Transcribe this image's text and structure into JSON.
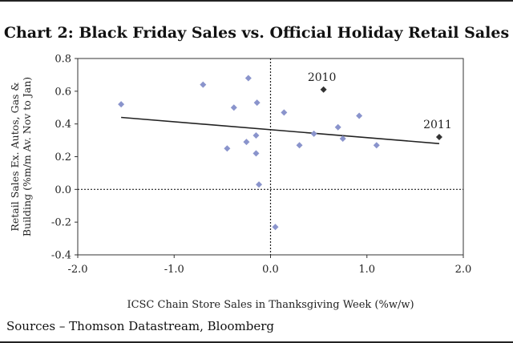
{
  "title": "Chart 2: Black Friday Sales vs. Official Holiday Retail Sales",
  "sources": "Sources – Thomson Datastream, Bloomberg",
  "chart_data": {
    "type": "scatter",
    "title": "Chart 2: Black Friday Sales vs. Official Holiday Retail Sales",
    "xlabel": "ICSC Chain Store Sales in Thanksgiving Week (%w/w)",
    "ylabel": "Retail Sales Ex. Autos, Gas & Building (%m/m Av. Nov to Jan)",
    "xlim": [
      -2.0,
      2.0
    ],
    "ylim": [
      -0.4,
      0.8
    ],
    "xticks": [
      -2.0,
      -1.0,
      0.0,
      1.0,
      2.0
    ],
    "xtick_labels": [
      "-2.0",
      "-1.0",
      "0.0",
      "1.0",
      "2.0"
    ],
    "yticks": [
      -0.4,
      -0.2,
      0.0,
      0.2,
      0.4,
      0.6,
      0.8
    ],
    "ytick_labels": [
      "-0.4",
      "-0.2",
      "0.0",
      "0.2",
      "0.4",
      "0.6",
      "0.8"
    ],
    "grid": false,
    "zero_lines": true,
    "colors": {
      "point": "#8a94cc",
      "highlight": "#333333",
      "trend": "#222222"
    },
    "points": [
      {
        "x": -1.55,
        "y": 0.52
      },
      {
        "x": -0.7,
        "y": 0.64
      },
      {
        "x": -0.45,
        "y": 0.25
      },
      {
        "x": -0.38,
        "y": 0.5
      },
      {
        "x": -0.25,
        "y": 0.29
      },
      {
        "x": -0.23,
        "y": 0.68
      },
      {
        "x": -0.15,
        "y": 0.33
      },
      {
        "x": -0.15,
        "y": 0.22
      },
      {
        "x": -0.14,
        "y": 0.53
      },
      {
        "x": -0.12,
        "y": 0.03
      },
      {
        "x": 0.05,
        "y": -0.23
      },
      {
        "x": 0.14,
        "y": 0.47
      },
      {
        "x": 0.3,
        "y": 0.27
      },
      {
        "x": 0.45,
        "y": 0.34
      },
      {
        "x": 0.7,
        "y": 0.38
      },
      {
        "x": 0.75,
        "y": 0.31
      },
      {
        "x": 0.92,
        "y": 0.45
      },
      {
        "x": 1.1,
        "y": 0.27
      }
    ],
    "highlighted": [
      {
        "x": 0.55,
        "y": 0.61,
        "label": "2010"
      },
      {
        "x": 1.75,
        "y": 0.32,
        "label": "2011"
      }
    ],
    "trendline": {
      "x": [
        -1.55,
        1.75
      ],
      "y": [
        0.44,
        0.28
      ]
    }
  }
}
